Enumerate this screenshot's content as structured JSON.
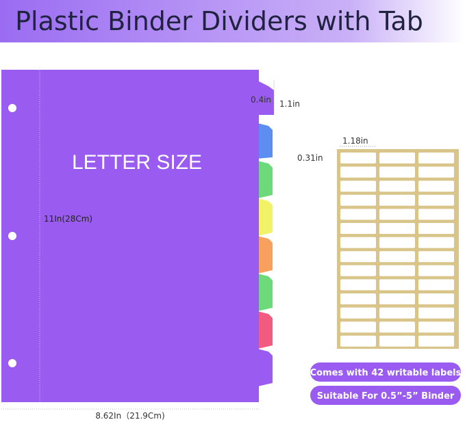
{
  "header": {
    "title": "Plastic Binder Dividers with Tab"
  },
  "divider": {
    "label": "LETTER SIZE",
    "height": "11In(28Cm)",
    "width": "8.62In（21.9Cm)",
    "tab_width": "0.4in",
    "tab_height": "1.1in"
  },
  "label_sheet": {
    "label_width": "1.18in",
    "label_height": "0.31in"
  },
  "badges": [
    "Comes with 42 writable labels",
    "Suitable For 0.5”-5”  Binder"
  ]
}
